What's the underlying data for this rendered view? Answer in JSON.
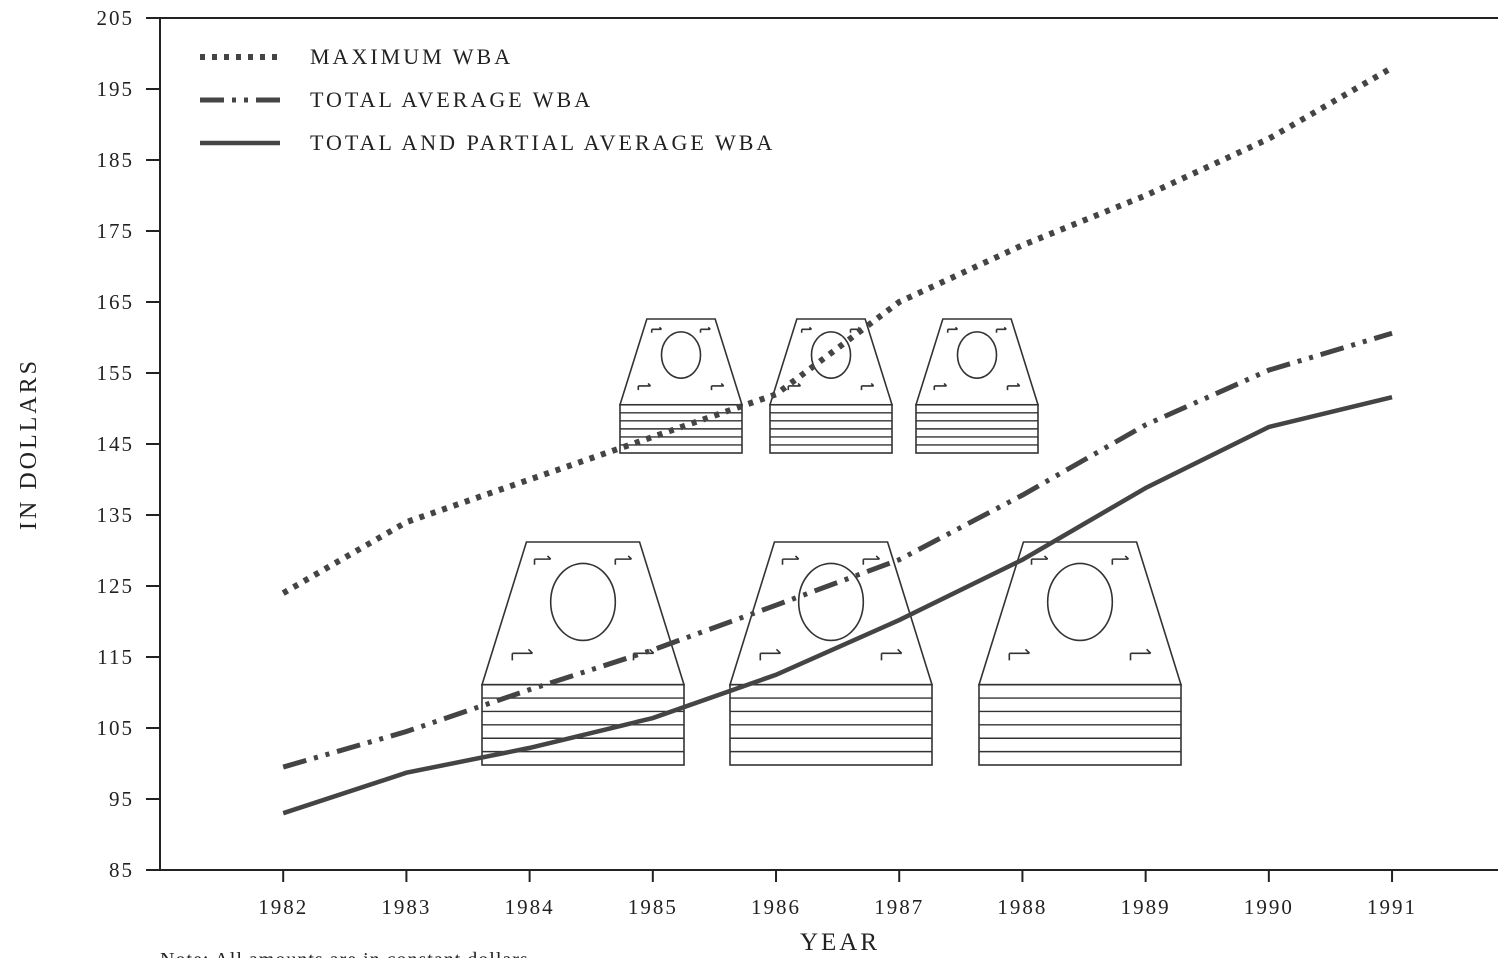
{
  "chart_data": {
    "type": "line",
    "x_label": "YEAR",
    "y_label": "IN DOLLARS",
    "note": "Note: All amounts are in constant dollars",
    "x": [
      1982,
      1983,
      1984,
      1985,
      1986,
      1987,
      1988,
      1989,
      1990,
      1991
    ],
    "xlim": [
      1981,
      1991.86
    ],
    "xticks": [
      1982,
      1983,
      1984,
      1985,
      1986,
      1987,
      1988,
      1989,
      1990,
      1991
    ],
    "ylim": [
      85,
      205
    ],
    "yticks": [
      85,
      95,
      105,
      115,
      125,
      135,
      145,
      155,
      165,
      175,
      185,
      195,
      205
    ],
    "series": [
      {
        "name": "MAXIMUM WBA",
        "color": "#444444",
        "style": "dotted",
        "values": [
          124,
          134,
          140,
          146,
          152,
          165,
          173,
          180,
          188,
          198
        ]
      },
      {
        "name": "TOTAL AVERAGE WBA",
        "color": "#444444",
        "style": "dash-dot-dot",
        "values": [
          99.5,
          104.5,
          110.4,
          116,
          122.3,
          128.7,
          137.8,
          147.7,
          155.4,
          160.6
        ]
      },
      {
        "name": "TOTAL AND PARTIAL AVERAGE WBA",
        "color": "#444444",
        "style": "solid",
        "values": [
          93,
          98.7,
          102.2,
          106.4,
          112.5,
          120.2,
          128.7,
          138.8,
          147.4,
          151.6
        ]
      }
    ]
  }
}
